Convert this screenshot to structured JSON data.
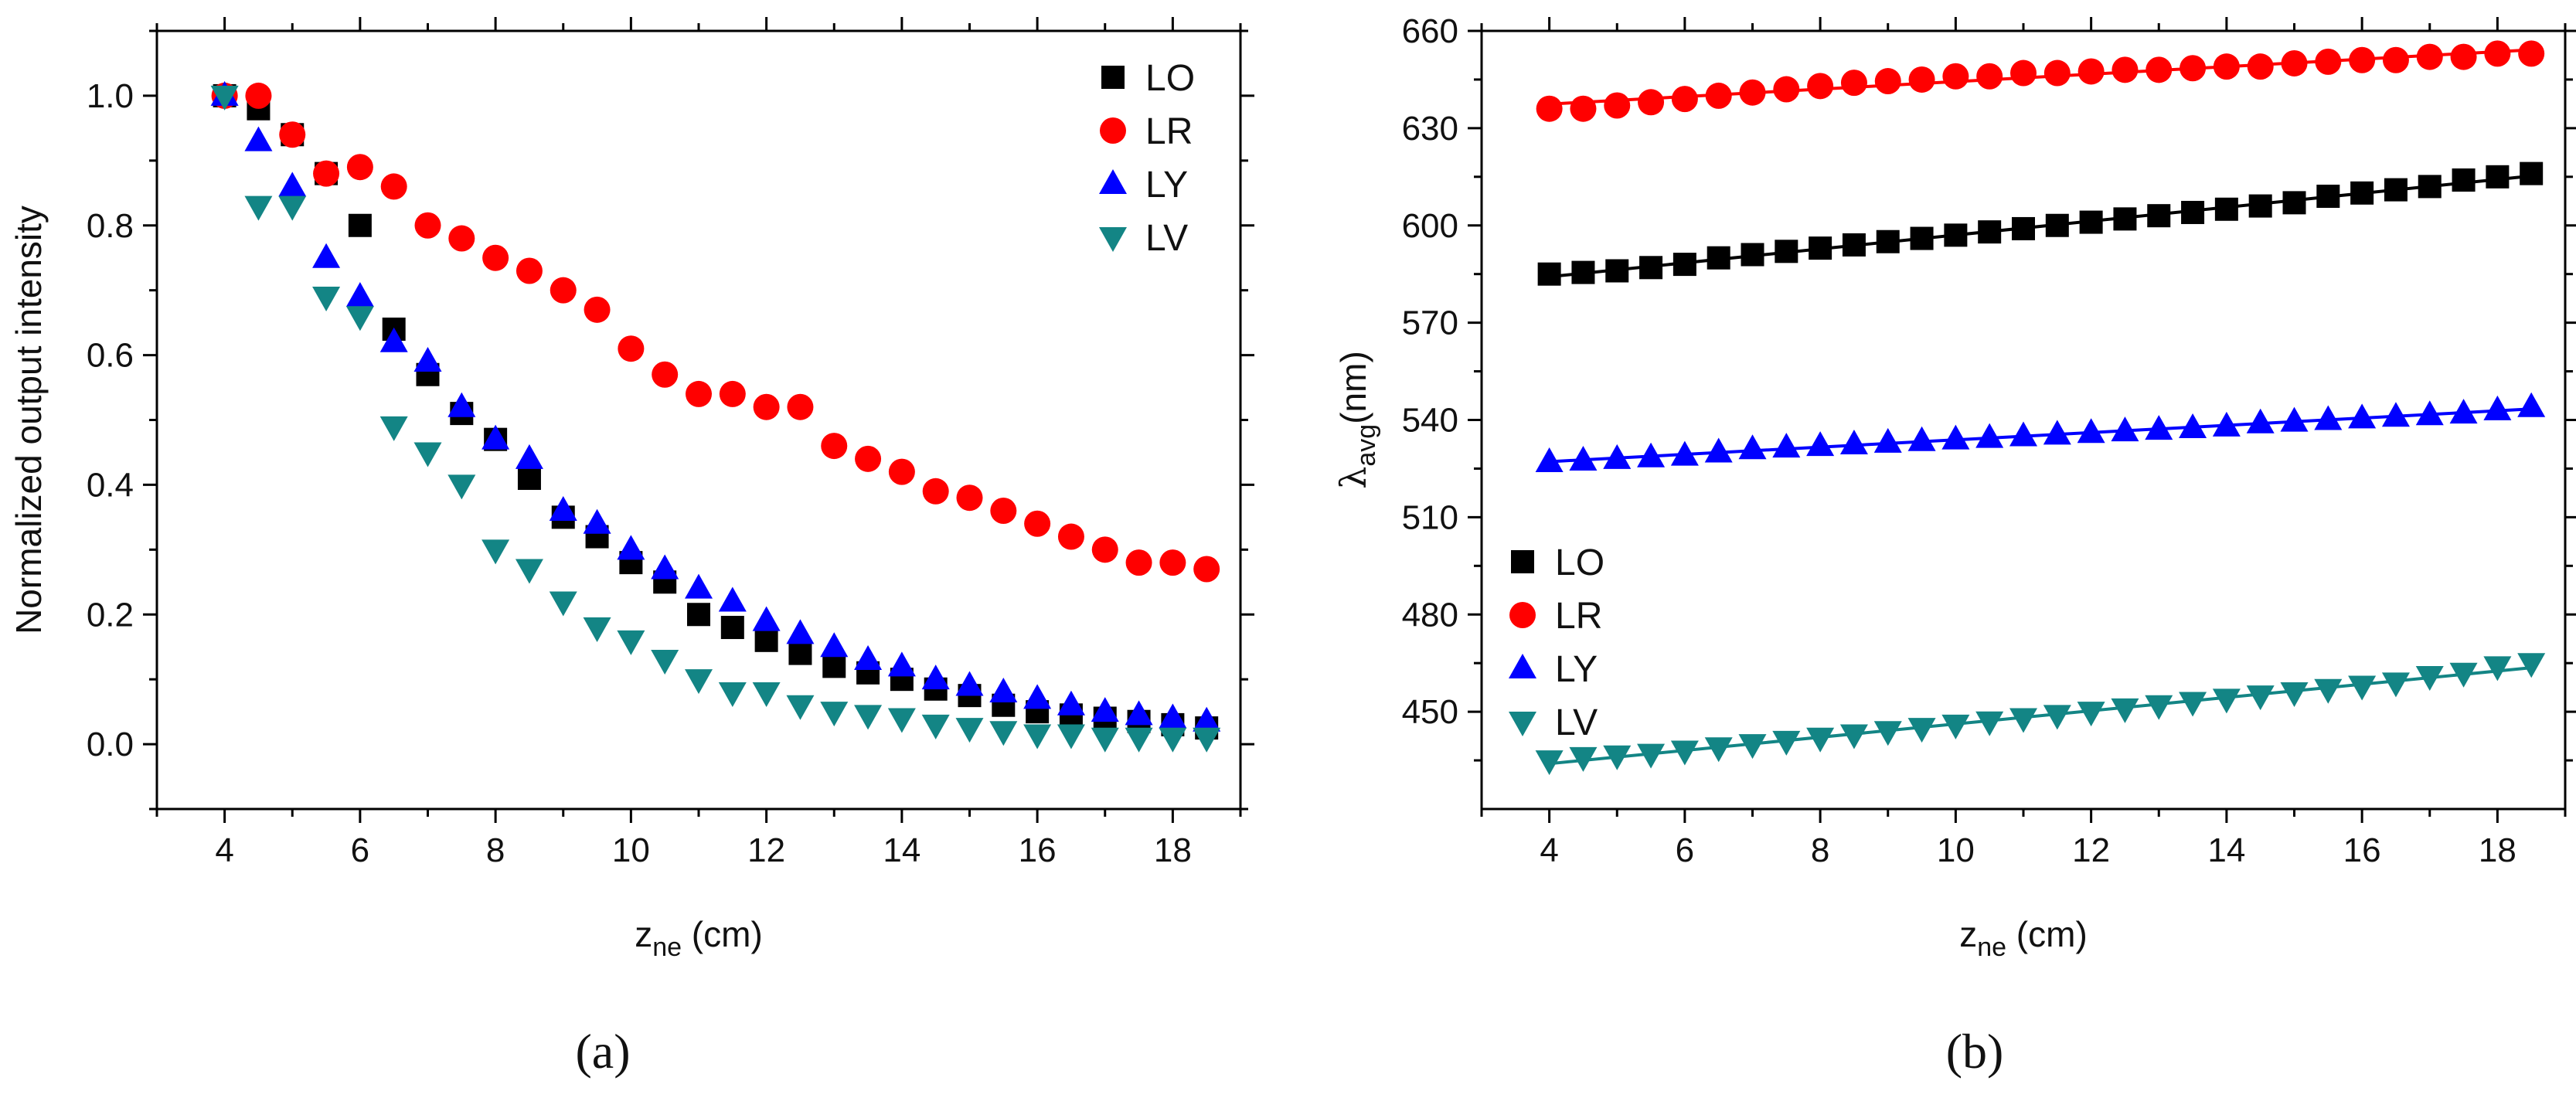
{
  "chart_data": [
    {
      "type": "scatter",
      "panel_label": "(a)",
      "xlabel_main": "z",
      "xlabel_sub": "ne",
      "xlabel_unit": " (cm)",
      "ylabel": "Normalized output intensity",
      "xlim": [
        3,
        19
      ],
      "ylim": [
        -0.1,
        1.1
      ],
      "xticks": [
        4,
        6,
        8,
        10,
        12,
        14,
        16,
        18
      ],
      "xtick_labels": [
        "4",
        "6",
        "8",
        "10",
        "12",
        "14",
        "16",
        "18"
      ],
      "yticks": [
        0.0,
        0.2,
        0.4,
        0.6,
        0.8,
        1.0
      ],
      "ytick_labels": [
        "0.0",
        "0.2",
        "0.4",
        "0.6",
        "0.8",
        "1.0"
      ],
      "legend_position": "top-right",
      "x": [
        4,
        4.5,
        5,
        5.5,
        6,
        6.5,
        7,
        7.5,
        8,
        8.5,
        9,
        9.5,
        10,
        10.5,
        11,
        11.5,
        12,
        12.5,
        13,
        13.5,
        14,
        14.5,
        15,
        15.5,
        16,
        16.5,
        17,
        17.5,
        18,
        18.5
      ],
      "series": [
        {
          "name": "LO",
          "marker": "square",
          "color": "#000000",
          "fit_line": false,
          "values": [
            1.0,
            0.98,
            0.94,
            0.88,
            0.8,
            0.64,
            0.57,
            0.51,
            0.47,
            0.41,
            0.35,
            0.32,
            0.28,
            0.25,
            0.2,
            0.18,
            0.16,
            0.14,
            0.12,
            0.11,
            0.1,
            0.085,
            0.075,
            0.06,
            0.05,
            0.045,
            0.04,
            0.035,
            0.03,
            0.025
          ]
        },
        {
          "name": "LR",
          "marker": "circle",
          "color": "#ff0000",
          "fit_line": false,
          "values": [
            1.0,
            1.0,
            0.94,
            0.88,
            0.89,
            0.86,
            0.8,
            0.78,
            0.75,
            0.73,
            0.7,
            0.67,
            0.61,
            0.57,
            0.54,
            0.54,
            0.52,
            0.52,
            0.46,
            0.44,
            0.42,
            0.39,
            0.38,
            0.36,
            0.34,
            0.32,
            0.3,
            0.28,
            0.28,
            0.27
          ]
        },
        {
          "name": "LY",
          "marker": "triangle-up",
          "color": "#0000ff",
          "fit_line": false,
          "values": [
            1.0,
            0.93,
            0.86,
            0.75,
            0.69,
            0.62,
            0.59,
            0.52,
            0.47,
            0.44,
            0.36,
            0.34,
            0.3,
            0.27,
            0.24,
            0.22,
            0.19,
            0.17,
            0.15,
            0.13,
            0.12,
            0.1,
            0.09,
            0.08,
            0.07,
            0.06,
            0.05,
            0.045,
            0.04,
            0.035
          ]
        },
        {
          "name": "LV",
          "marker": "triangle-down",
          "color": "#138585",
          "fit_line": false,
          "values": [
            1.0,
            0.83,
            0.83,
            0.69,
            0.66,
            0.49,
            0.45,
            0.4,
            0.3,
            0.27,
            0.22,
            0.18,
            0.16,
            0.13,
            0.1,
            0.08,
            0.08,
            0.06,
            0.05,
            0.045,
            0.04,
            0.03,
            0.025,
            0.02,
            0.015,
            0.015,
            0.01,
            0.01,
            0.01,
            0.01
          ]
        }
      ]
    },
    {
      "type": "scatter",
      "panel_label": "(b)",
      "xlabel_main": "z",
      "xlabel_sub": "ne",
      "xlabel_unit": " (cm)",
      "ylabel_main": "λ",
      "ylabel_sub": "avg",
      "ylabel_unit": "(nm)",
      "xlim": [
        3,
        19
      ],
      "ylim": [
        420,
        660
      ],
      "xticks": [
        4,
        6,
        8,
        10,
        12,
        14,
        16,
        18
      ],
      "xtick_labels": [
        "4",
        "6",
        "8",
        "10",
        "12",
        "14",
        "16",
        "18"
      ],
      "yticks": [
        450,
        480,
        510,
        540,
        570,
        600,
        630,
        660
      ],
      "ytick_labels": [
        "450",
        "480",
        "510",
        "540",
        "570",
        "600",
        "630",
        "660"
      ],
      "legend_position": "center-left",
      "x": [
        4,
        4.5,
        5,
        5.5,
        6,
        6.5,
        7,
        7.5,
        8,
        8.5,
        9,
        9.5,
        10,
        10.5,
        11,
        11.5,
        12,
        12.5,
        13,
        13.5,
        14,
        14.5,
        15,
        15.5,
        16,
        16.5,
        17,
        17.5,
        18,
        18.5
      ],
      "series": [
        {
          "name": "LO",
          "marker": "square",
          "color": "#000000",
          "fit_line": true,
          "values": [
            585,
            585.5,
            586,
            587,
            588,
            590,
            591,
            592,
            593,
            594,
            595,
            596,
            597,
            598,
            599,
            600,
            601,
            602,
            603,
            604,
            605,
            606,
            607,
            609,
            610,
            611,
            612,
            614,
            615,
            616
          ]
        },
        {
          "name": "LR",
          "marker": "circle",
          "color": "#ff0000",
          "fit_line": true,
          "values": [
            636,
            636,
            637,
            638,
            639,
            640,
            641,
            642,
            643,
            644,
            644.5,
            645,
            646,
            646,
            647,
            647,
            647.5,
            648,
            648,
            648.5,
            649,
            649,
            650,
            650.5,
            651,
            651,
            652,
            652,
            653,
            653
          ]
        },
        {
          "name": "LY",
          "marker": "triangle-up",
          "color": "#0000ff",
          "fit_line": true,
          "values": [
            527,
            527.5,
            528,
            528.5,
            529,
            530,
            531,
            531.5,
            532,
            532.5,
            533,
            533.5,
            534,
            534.5,
            535,
            535.5,
            536,
            536.5,
            537,
            537.5,
            538,
            539,
            539.5,
            540,
            540.5,
            541,
            541.5,
            542,
            543,
            544
          ]
        },
        {
          "name": "LV",
          "marker": "triangle-down",
          "color": "#138585",
          "fit_line": true,
          "values": [
            435,
            436,
            436.5,
            437,
            438,
            439,
            440,
            441,
            442,
            443,
            444,
            445,
            446,
            447,
            448,
            449,
            450,
            451,
            452,
            453,
            454,
            455,
            456,
            457,
            458,
            459,
            461,
            462,
            464,
            465
          ]
        }
      ]
    }
  ]
}
